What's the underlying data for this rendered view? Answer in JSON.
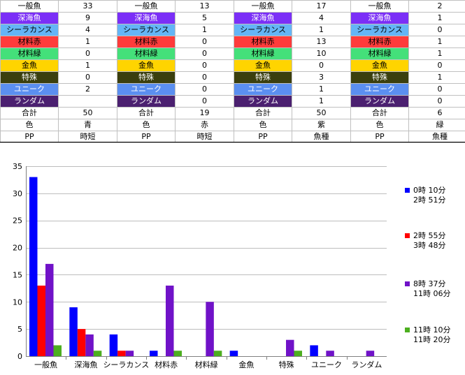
{
  "table": {
    "label_colors": {
      "一般魚": [
        "#ffffff",
        "#000000"
      ],
      "深海魚": [
        "#7b2ff7",
        "#ffffff"
      ],
      "シーラカンス": [
        "#64b5f6",
        "#000000"
      ],
      "材料赤": [
        "#ff3b3b",
        "#000000"
      ],
      "材料緑": [
        "#44e07a",
        "#000000"
      ],
      "金魚": [
        "#ffd400",
        "#000000"
      ],
      "特殊": [
        "#3b3f0e",
        "#ffffff"
      ],
      "ユニーク": [
        "#5b8ff0",
        "#ffffff"
      ],
      "ランダム": [
        "#4b2070",
        "#ffffff"
      ]
    },
    "groups": [
      {
        "rows": [
          [
            "一般魚",
            "33"
          ],
          [
            "深海魚",
            "9"
          ],
          [
            "シーラカンス",
            "4"
          ],
          [
            "材料赤",
            "1"
          ],
          [
            "材料緑",
            "0"
          ],
          [
            "金魚",
            "1"
          ],
          [
            "特殊",
            "0"
          ],
          [
            "ユニーク",
            "2"
          ],
          [
            "ランダム",
            ""
          ]
        ],
        "total": [
          "合計",
          "50"
        ],
        "color": [
          "色",
          "青"
        ],
        "pp": [
          "PP",
          "時短"
        ]
      },
      {
        "rows": [
          [
            "一般魚",
            "13"
          ],
          [
            "深海魚",
            "5"
          ],
          [
            "シーラカンス",
            "1"
          ],
          [
            "材料赤",
            "0"
          ],
          [
            "材料緑",
            "0"
          ],
          [
            "金魚",
            "0"
          ],
          [
            "特殊",
            "0"
          ],
          [
            "ユニーク",
            "0"
          ],
          [
            "ランダム",
            "0"
          ]
        ],
        "total": [
          "合計",
          "19"
        ],
        "color": [
          "色",
          "赤"
        ],
        "pp": [
          "PP",
          "時短"
        ]
      },
      {
        "rows": [
          [
            "一般魚",
            "17"
          ],
          [
            "深海魚",
            "4"
          ],
          [
            "シーラカンス",
            "1"
          ],
          [
            "材料赤",
            "13"
          ],
          [
            "材料緑",
            "10"
          ],
          [
            "金魚",
            "0"
          ],
          [
            "特殊",
            "3"
          ],
          [
            "ユニーク",
            "1"
          ],
          [
            "ランダム",
            "1"
          ]
        ],
        "total": [
          "合計",
          "50"
        ],
        "color": [
          "色",
          "紫"
        ],
        "pp": [
          "PP",
          "魚種"
        ]
      },
      {
        "rows": [
          [
            "一般魚",
            "2"
          ],
          [
            "深海魚",
            "1"
          ],
          [
            "シーラカンス",
            "0"
          ],
          [
            "材料赤",
            "1"
          ],
          [
            "材料緑",
            "1"
          ],
          [
            "金魚",
            "0"
          ],
          [
            "特殊",
            "1"
          ],
          [
            "ユニーク",
            "0"
          ],
          [
            "ランダム",
            "0"
          ]
        ],
        "total": [
          "合計",
          "6"
        ],
        "color": [
          "色",
          "緑"
        ],
        "pp": [
          "PP",
          "魚種"
        ]
      }
    ]
  },
  "chart_data": {
    "type": "bar",
    "categories": [
      "一般魚",
      "深海魚",
      "シーラカンス",
      "材料赤",
      "材料緑",
      "金魚",
      "特殊",
      "ユニーク",
      "ランダム"
    ],
    "series": [
      {
        "name": [
          "0時 10分",
          "2時 51分"
        ],
        "color": "#0000ff",
        "values": [
          33,
          9,
          4,
          1,
          0,
          1,
          0,
          2,
          0
        ]
      },
      {
        "name": [
          "2時 55分",
          "3時 48分"
        ],
        "color": "#ff0000",
        "values": [
          13,
          5,
          1,
          0,
          0,
          0,
          0,
          0,
          0
        ]
      },
      {
        "name": [
          "8時 37分",
          "11時 06分"
        ],
        "color": "#7012c8",
        "values": [
          17,
          4,
          1,
          13,
          10,
          0,
          3,
          1,
          1
        ]
      },
      {
        "name": [
          "11時 10分",
          "11時 20分"
        ],
        "color": "#4caf1f",
        "values": [
          2,
          1,
          0,
          1,
          1,
          0,
          1,
          0,
          0
        ]
      }
    ],
    "ylim": [
      0,
      35
    ],
    "yticks": [
      0,
      5,
      10,
      15,
      20,
      25,
      30,
      35
    ],
    "grid": true,
    "legend": "right"
  }
}
